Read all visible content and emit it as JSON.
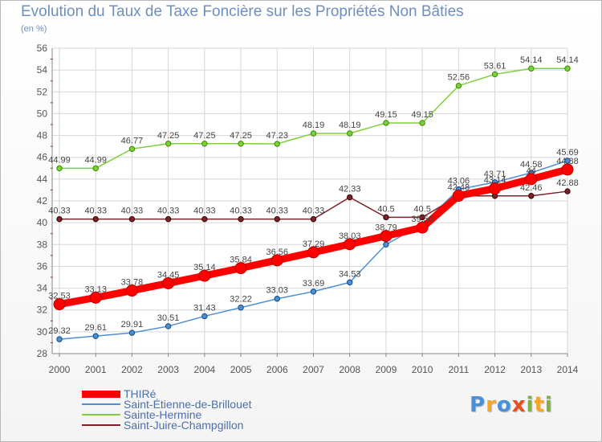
{
  "header": {
    "title": "Evolution du Taux de Taxe Foncière sur les Propriétés Non Bâties",
    "unit": "(en %)"
  },
  "logo": {
    "text": "Proxiti",
    "letters": [
      {
        "ch": "P",
        "color": "#4a90d9"
      },
      {
        "ch": "r",
        "color": "#f5a623"
      },
      {
        "ch": "o",
        "color": "#4a90d9"
      },
      {
        "ch": "x",
        "color": "#e94e1b"
      },
      {
        "ch": "i",
        "color": "#7cb342"
      },
      {
        "ch": "t",
        "color": "#f5a623"
      },
      {
        "ch": "i",
        "color": "#7cb342"
      }
    ]
  },
  "chart_data": {
    "type": "line",
    "title": "Evolution du Taux de Taxe Foncière sur les Propriétés Non Bâties",
    "ylabel": "(en %)",
    "xlabel": "",
    "ylim": [
      28,
      56
    ],
    "yticks": [
      28,
      30,
      32,
      34,
      36,
      38,
      40,
      42,
      44,
      46,
      48,
      50,
      52,
      54,
      56
    ],
    "grid": true,
    "x": [
      "2000",
      "2001",
      "2002",
      "2003",
      "2004",
      "2005",
      "2006",
      "2007",
      "2008",
      "2009",
      "2010",
      "2011",
      "2012",
      "2013",
      "2014"
    ],
    "series": [
      {
        "name": "THIRé",
        "color": "#ff0000",
        "values": [
          32.53,
          33.13,
          33.78,
          34.45,
          35.14,
          35.84,
          36.56,
          37.29,
          38.03,
          38.79,
          39.56,
          42.48,
          43.14,
          44.0,
          44.88
        ],
        "labels": [
          "32.53",
          "33.13",
          "33.78",
          "34.45",
          "35.14",
          "35.84",
          "36.56",
          "37.29",
          "38.03",
          "38.79",
          "39.56",
          "42.48",
          "43.14",
          "44",
          "44.88"
        ]
      },
      {
        "name": "Saint-Étienne-de-Brillouet",
        "color": "#4f8fd0",
        "values": [
          29.32,
          29.61,
          29.91,
          30.51,
          31.43,
          32.22,
          33.03,
          33.69,
          34.53,
          38.0,
          39.85,
          43.06,
          43.71,
          44.58,
          45.69
        ],
        "labels": [
          "29.32",
          "29.61",
          "29.91",
          "30.51",
          "31.43",
          "32.22",
          "33.03",
          "33.69",
          "34.53",
          "",
          "",
          "43.06",
          "43.71",
          "44.58",
          "45.69"
        ]
      },
      {
        "name": "Sainte-Hermine",
        "color": "#7ed03a",
        "values": [
          44.99,
          44.99,
          46.77,
          47.25,
          47.25,
          47.25,
          47.23,
          48.19,
          48.19,
          49.15,
          49.15,
          52.56,
          53.61,
          54.14,
          54.14
        ],
        "labels": [
          "44.99",
          "44.99",
          "46.77",
          "47.25",
          "47.25",
          "47.25",
          "47.23",
          "48.19",
          "48.19",
          "49.15",
          "49.15",
          "52.56",
          "53.61",
          "54.14",
          "54.14"
        ]
      },
      {
        "name": "Saint-Juire-Champgillon",
        "color": "#7b2228",
        "values": [
          40.33,
          40.33,
          40.33,
          40.33,
          40.33,
          40.33,
          40.33,
          40.33,
          42.33,
          40.5,
          40.5,
          42.46,
          42.46,
          42.46,
          42.88
        ],
        "labels": [
          "40.33",
          "40.33",
          "40.33",
          "40.33",
          "40.33",
          "40.33",
          "40.33",
          "40.33",
          "42.33",
          "40.5",
          "40.5",
          "",
          "",
          "42.46",
          "42.88"
        ]
      }
    ]
  }
}
